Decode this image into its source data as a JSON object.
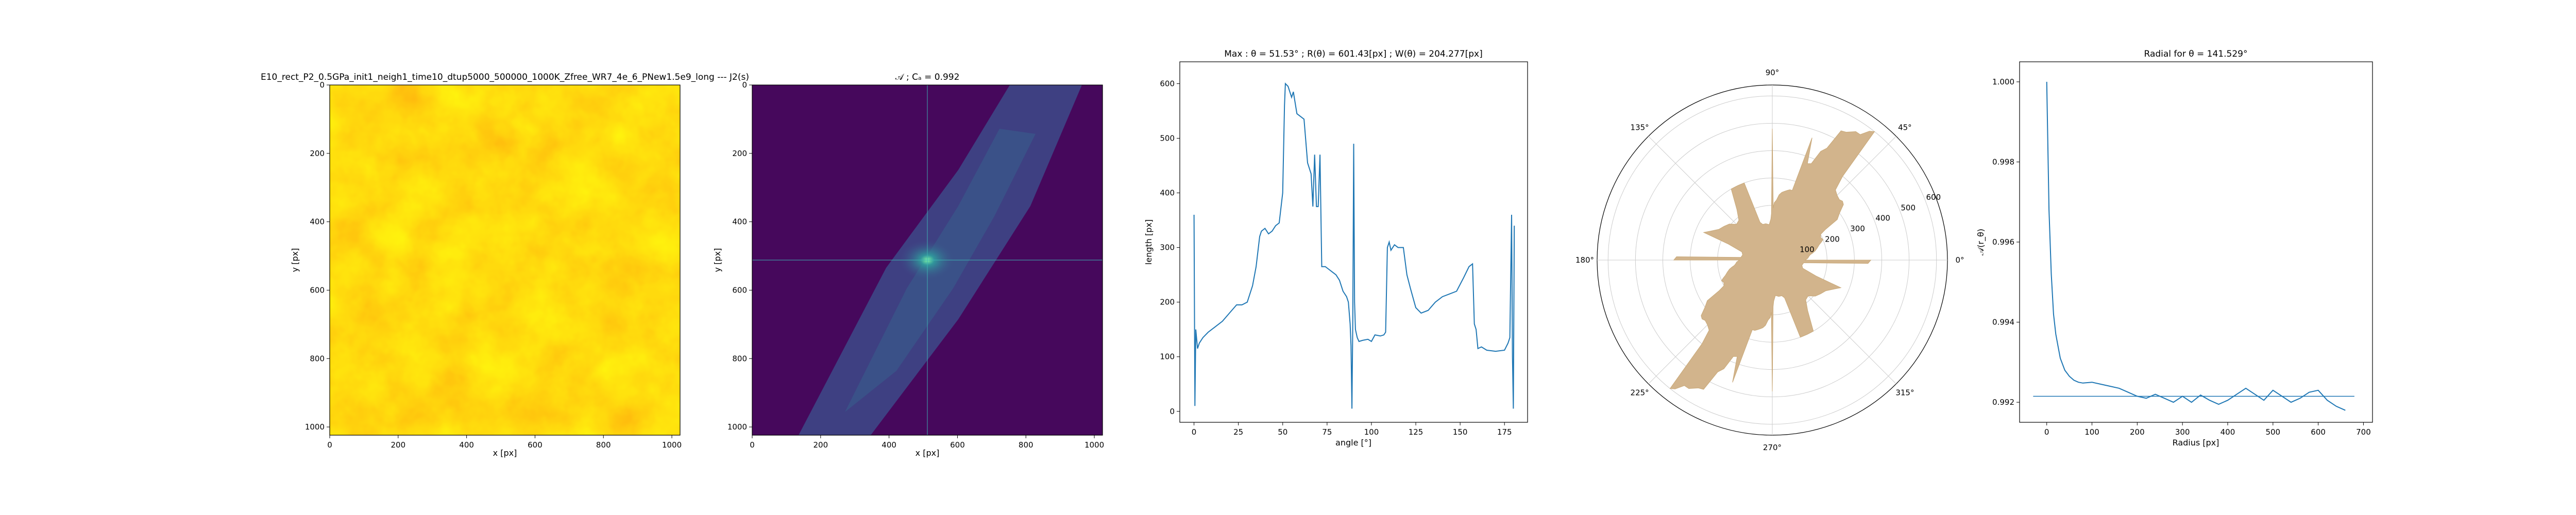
{
  "chart_data": [
    {
      "type": "heatmap",
      "title": "E10_rect_P2_0.5GPa_init1_neigh1_time10_dtup5000_500000_1000K_Zfree_WR7_4e_6_PNew1.5e9_long --- J2(s)",
      "xlabel": "x [px]",
      "ylabel": "y [px]",
      "xlim": [
        0,
        1024
      ],
      "ylim": [
        1024,
        0
      ],
      "xticks": [
        "0",
        "200",
        "400",
        "600",
        "800",
        "1000"
      ],
      "yticks": [
        "0",
        "200",
        "400",
        "600",
        "800",
        "1000"
      ],
      "colormap": "yellow-to-orange",
      "colors": {
        "low": "#ffff80",
        "high": "#f2a60d"
      }
    },
    {
      "type": "heatmap",
      "title": "𝒜 ; Cₐ = 0.992",
      "xlabel": "x [px]",
      "ylabel": "y [px]",
      "xlim": [
        0,
        1024
      ],
      "ylim": [
        1024,
        0
      ],
      "xticks": [
        "0",
        "200",
        "400",
        "600",
        "800",
        "1000"
      ],
      "yticks": [
        "0",
        "200",
        "400",
        "600",
        "800",
        "1000"
      ],
      "crosshair": [
        512,
        512
      ],
      "colormap": "viridis",
      "colors": {
        "background": "#46085c",
        "band": "#3d4a88",
        "peak": "#5ad9a0",
        "line": "#3fb3b3"
      }
    },
    {
      "type": "line",
      "title": "Max : θ = 51.53° ; R(θ) = 601.43[px] ; W(θ) = 204.277[px]",
      "xlabel": "angle [°]",
      "ylabel": "length [px]",
      "xlim": [
        -8,
        188
      ],
      "ylim": [
        -20,
        640
      ],
      "xticks": [
        0,
        25,
        50,
        75,
        100,
        125,
        150,
        175
      ],
      "yticks": [
        0,
        100,
        200,
        300,
        400,
        500,
        600
      ],
      "series": [
        {
          "color": "#1f77b4",
          "x": [
            0,
            0.5,
            1,
            2,
            3,
            5,
            8,
            12,
            16,
            20,
            24,
            27,
            30,
            33,
            35,
            37,
            38,
            40,
            42,
            44,
            46,
            48,
            50,
            51,
            51.5,
            53,
            55,
            56,
            58,
            60,
            62,
            64,
            66,
            67,
            68,
            69,
            70,
            71,
            72,
            74,
            76,
            78,
            80,
            82,
            84,
            86,
            87,
            88,
            88.5,
            89,
            89.5,
            90,
            90.5,
            91,
            92,
            93,
            95,
            98,
            100,
            102,
            105,
            107,
            108,
            109,
            110,
            111,
            113,
            115,
            118,
            120,
            122,
            125,
            128,
            132,
            136,
            140,
            144,
            148,
            152,
            155,
            157,
            158,
            159,
            160,
            162,
            165,
            170,
            175,
            177,
            178,
            179,
            179.5,
            180,
            180.5
          ],
          "y": [
            360,
            10,
            150,
            115,
            125,
            135,
            145,
            155,
            165,
            180,
            195,
            195,
            200,
            230,
            265,
            320,
            330,
            335,
            325,
            330,
            340,
            345,
            400,
            560,
            600,
            595,
            575,
            585,
            545,
            540,
            535,
            455,
            435,
            375,
            470,
            375,
            375,
            470,
            265,
            265,
            260,
            255,
            250,
            240,
            220,
            210,
            200,
            160,
            120,
            5,
            170,
            490,
            200,
            150,
            135,
            128,
            130,
            132,
            128,
            140,
            138,
            140,
            145,
            300,
            310,
            295,
            305,
            300,
            300,
            250,
            225,
            190,
            180,
            185,
            200,
            210,
            215,
            220,
            245,
            265,
            270,
            160,
            150,
            115,
            118,
            112,
            110,
            112,
            125,
            135,
            360,
            100,
            5,
            340
          ]
        }
      ]
    },
    {
      "type": "area",
      "projection": "polar",
      "title": "",
      "angle_tick_labels": [
        "0°",
        "45°",
        "90°",
        "135°",
        "180°",
        "225°",
        "270°",
        "315°"
      ],
      "radial_ticks": [
        100,
        200,
        300,
        400,
        500,
        600
      ],
      "rmax": 640,
      "fill_color": "#d2b48c",
      "series": [
        {
          "theta_deg": [
            0,
            3,
            6,
            8,
            10,
            12,
            15,
            18,
            20,
            22,
            25,
            28,
            30,
            32,
            35,
            38,
            40,
            42,
            45,
            48,
            50,
            51.5,
            53,
            55,
            57,
            60,
            62,
            64,
            66,
            68,
            70,
            72,
            74,
            76,
            78,
            80,
            82,
            84,
            86,
            88,
            89,
            90,
            91,
            92,
            95,
            100,
            105,
            108,
            110,
            115,
            120,
            125,
            130,
            135,
            140,
            145,
            150,
            155,
            158,
            160,
            165,
            170,
            175,
            178,
            180
          ],
          "r": [
            120,
            130,
            135,
            140,
            150,
            160,
            170,
            180,
            190,
            200,
            195,
            200,
            225,
            280,
            300,
            330,
            335,
            330,
            335,
            345,
            400,
            600,
            590,
            560,
            560,
            540,
            535,
            455,
            435,
            380,
            375,
            470,
            265,
            265,
            260,
            255,
            250,
            240,
            220,
            210,
            190,
            480,
            170,
            150,
            130,
            135,
            135,
            145,
            300,
            300,
            300,
            225,
            190,
            185,
            205,
            215,
            225,
            250,
            270,
            170,
            115,
            110,
            115,
            350,
            360
          ]
        }
      ]
    },
    {
      "type": "line",
      "title": "Radial for θ = 141.529°",
      "xlabel": "Radius [px]",
      "ylabel": "𝒜(r_θ)",
      "xlim": [
        -60,
        720
      ],
      "ylim": [
        0.9915,
        1.0005
      ],
      "xticks": [
        0,
        100,
        200,
        300,
        400,
        500,
        600,
        700
      ],
      "yticks": [
        "0.992",
        "0.994",
        "0.996",
        "0.998",
        "1.000"
      ],
      "hline": 0.99215,
      "series": [
        {
          "color": "#1f77b4",
          "x": [
            0,
            5,
            10,
            15,
            20,
            25,
            30,
            40,
            50,
            60,
            70,
            80,
            100,
            120,
            140,
            160,
            180,
            200,
            220,
            240,
            260,
            280,
            300,
            320,
            340,
            360,
            380,
            400,
            420,
            440,
            460,
            480,
            500,
            520,
            540,
            560,
            580,
            600,
            620,
            640,
            660
          ],
          "y": [
            1.0,
            0.9968,
            0.9952,
            0.9942,
            0.9937,
            0.9934,
            0.9931,
            0.9928,
            0.99265,
            0.99255,
            0.9925,
            0.99248,
            0.9925,
            0.99245,
            0.9924,
            0.99235,
            0.99225,
            0.99215,
            0.9921,
            0.9922,
            0.9921,
            0.992,
            0.99215,
            0.992,
            0.99218,
            0.99205,
            0.99195,
            0.99205,
            0.9922,
            0.99235,
            0.9922,
            0.99205,
            0.9923,
            0.99215,
            0.992,
            0.9921,
            0.99225,
            0.9923,
            0.99205,
            0.9919,
            0.9918
          ]
        }
      ]
    }
  ]
}
